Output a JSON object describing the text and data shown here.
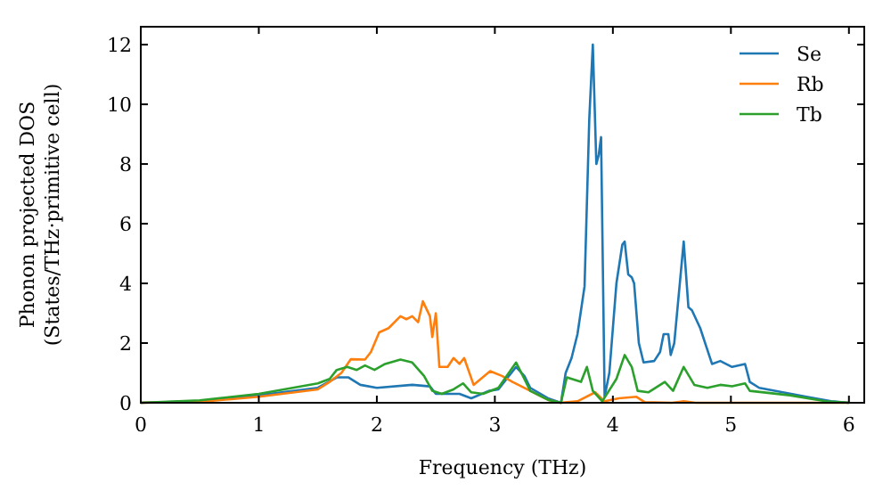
{
  "chart_data": {
    "type": "line",
    "xlabel": "Frequency (THz)",
    "ylabel": "Phonon projected DOS\n(States/THz·primitive cell)",
    "xlim": [
      0,
      6.13
    ],
    "ylim": [
      0,
      12.6
    ],
    "xticks": [
      0,
      1,
      2,
      3,
      4,
      5,
      6
    ],
    "yticks": [
      0,
      2,
      4,
      6,
      8,
      10,
      12
    ],
    "legend": "top right",
    "grid": false,
    "series": [
      {
        "name": "Se",
        "color": "#1f77b4",
        "x": [
          0,
          0.5,
          1,
          1.5,
          1.66,
          1.76,
          1.86,
          2.0,
          2.3,
          2.45,
          2.5,
          2.7,
          2.8,
          2.95,
          3.03,
          3.18,
          3.25,
          3.3,
          3.45,
          3.56,
          3.6,
          3.65,
          3.7,
          3.76,
          3.8,
          3.83,
          3.86,
          3.88,
          3.9,
          3.93,
          3.97,
          4.03,
          4.08,
          4.1,
          4.13,
          4.16,
          4.18,
          4.22,
          4.26,
          4.35,
          4.4,
          4.43,
          4.47,
          4.49,
          4.52,
          4.6,
          4.64,
          4.67,
          4.74,
          4.79,
          4.84,
          4.91,
          5.01,
          5.12,
          5.16,
          5.24,
          5.64,
          5.85,
          6.0
        ],
        "values": [
          0,
          0.05,
          0.25,
          0.5,
          0.85,
          0.85,
          0.6,
          0.5,
          0.6,
          0.55,
          0.3,
          0.3,
          0.15,
          0.4,
          0.45,
          1.2,
          0.9,
          0.5,
          0.15,
          0,
          1.0,
          1.5,
          2.3,
          3.9,
          9.5,
          12.0,
          8.0,
          8.3,
          8.9,
          0.2,
          1.0,
          4.0,
          5.3,
          5.4,
          4.3,
          4.2,
          4.0,
          2.0,
          1.35,
          1.4,
          1.7,
          2.3,
          2.3,
          1.6,
          2.0,
          5.4,
          3.2,
          3.1,
          2.5,
          1.9,
          1.3,
          1.4,
          1.2,
          1.3,
          0.7,
          0.5,
          0.2,
          0.05,
          0
        ]
      },
      {
        "name": "Rb",
        "color": "#ff7f0e",
        "x": [
          0,
          0.5,
          1,
          1.5,
          1.6,
          1.7,
          1.78,
          1.9,
          1.95,
          2.02,
          2.1,
          2.2,
          2.25,
          2.3,
          2.35,
          2.39,
          2.45,
          2.47,
          2.5,
          2.53,
          2.6,
          2.65,
          2.7,
          2.74,
          2.82,
          2.96,
          3.06,
          3.15,
          3.3,
          3.45,
          3.55,
          3.7,
          3.85,
          3.93,
          4.05,
          4.2,
          4.27,
          4.5,
          4.6,
          4.7,
          6.0
        ],
        "values": [
          0,
          0.03,
          0.2,
          0.45,
          0.7,
          1.0,
          1.46,
          1.45,
          1.7,
          2.36,
          2.5,
          2.9,
          2.8,
          2.9,
          2.7,
          3.4,
          2.9,
          2.2,
          3.0,
          1.2,
          1.2,
          1.5,
          1.3,
          1.5,
          0.6,
          1.06,
          0.9,
          0.7,
          0.4,
          0.1,
          0,
          0.05,
          0.35,
          0.05,
          0.15,
          0.2,
          0.02,
          0,
          0.05,
          0,
          0
        ]
      },
      {
        "name": "Tb",
        "color": "#2ca02c",
        "x": [
          0,
          0.5,
          1,
          1.5,
          1.6,
          1.66,
          1.75,
          1.83,
          1.9,
          1.98,
          2.07,
          2.2,
          2.3,
          2.4,
          2.47,
          2.55,
          2.65,
          2.73,
          2.8,
          2.9,
          3.03,
          3.18,
          3.25,
          3.3,
          3.45,
          3.56,
          3.61,
          3.73,
          3.78,
          3.83,
          3.91,
          4.03,
          4.1,
          4.16,
          4.21,
          4.3,
          4.44,
          4.51,
          4.6,
          4.69,
          4.8,
          4.91,
          5.01,
          5.12,
          5.16,
          5.5,
          5.8,
          6.0
        ],
        "values": [
          0,
          0.08,
          0.3,
          0.65,
          0.8,
          1.1,
          1.2,
          1.1,
          1.25,
          1.1,
          1.3,
          1.45,
          1.35,
          0.9,
          0.4,
          0.3,
          0.45,
          0.65,
          0.35,
          0.3,
          0.5,
          1.35,
          0.8,
          0.4,
          0.1,
          0,
          0.85,
          0.7,
          1.2,
          0.4,
          0.05,
          0.8,
          1.6,
          1.2,
          0.4,
          0.35,
          0.7,
          0.4,
          1.2,
          0.6,
          0.5,
          0.6,
          0.55,
          0.65,
          0.4,
          0.25,
          0.05,
          0
        ]
      }
    ]
  }
}
